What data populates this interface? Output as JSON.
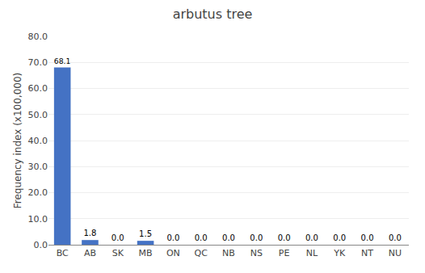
{
  "chart_data": {
    "type": "bar",
    "title": "arbutus tree",
    "categories": [
      "BC",
      "AB",
      "SK",
      "MB",
      "ON",
      "QC",
      "NB",
      "NS",
      "PE",
      "NL",
      "YK",
      "NT",
      "NU"
    ],
    "values": [
      68.1,
      1.8,
      0.0,
      1.5,
      0.0,
      0.0,
      0.0,
      0.0,
      0.0,
      0.0,
      0.0,
      0.0,
      0.0
    ],
    "value_labels": [
      "68.1",
      "1.8",
      "0.0",
      "1.5",
      "0.0",
      "0.0",
      "0.0",
      "0.0",
      "0.0",
      "0.0",
      "0.0",
      "0.0",
      "0.0"
    ],
    "data_labels": true,
    "color": "#4472c4",
    "ylabel": "Frequency index (x100,000)",
    "ylim": [
      0,
      80
    ],
    "yticks": [
      {
        "value": 0,
        "label": "0.0"
      },
      {
        "value": 10,
        "label": "10.0"
      },
      {
        "value": 20,
        "label": "20.0"
      },
      {
        "value": 30,
        "label": "30.0"
      },
      {
        "value": 40,
        "label": "40.0"
      },
      {
        "value": 50,
        "label": "50.0"
      },
      {
        "value": 60,
        "label": "60.0"
      },
      {
        "value": 70,
        "label": "70.0"
      },
      {
        "value": 80,
        "label": "80.0"
      }
    ],
    "grid": true
  }
}
